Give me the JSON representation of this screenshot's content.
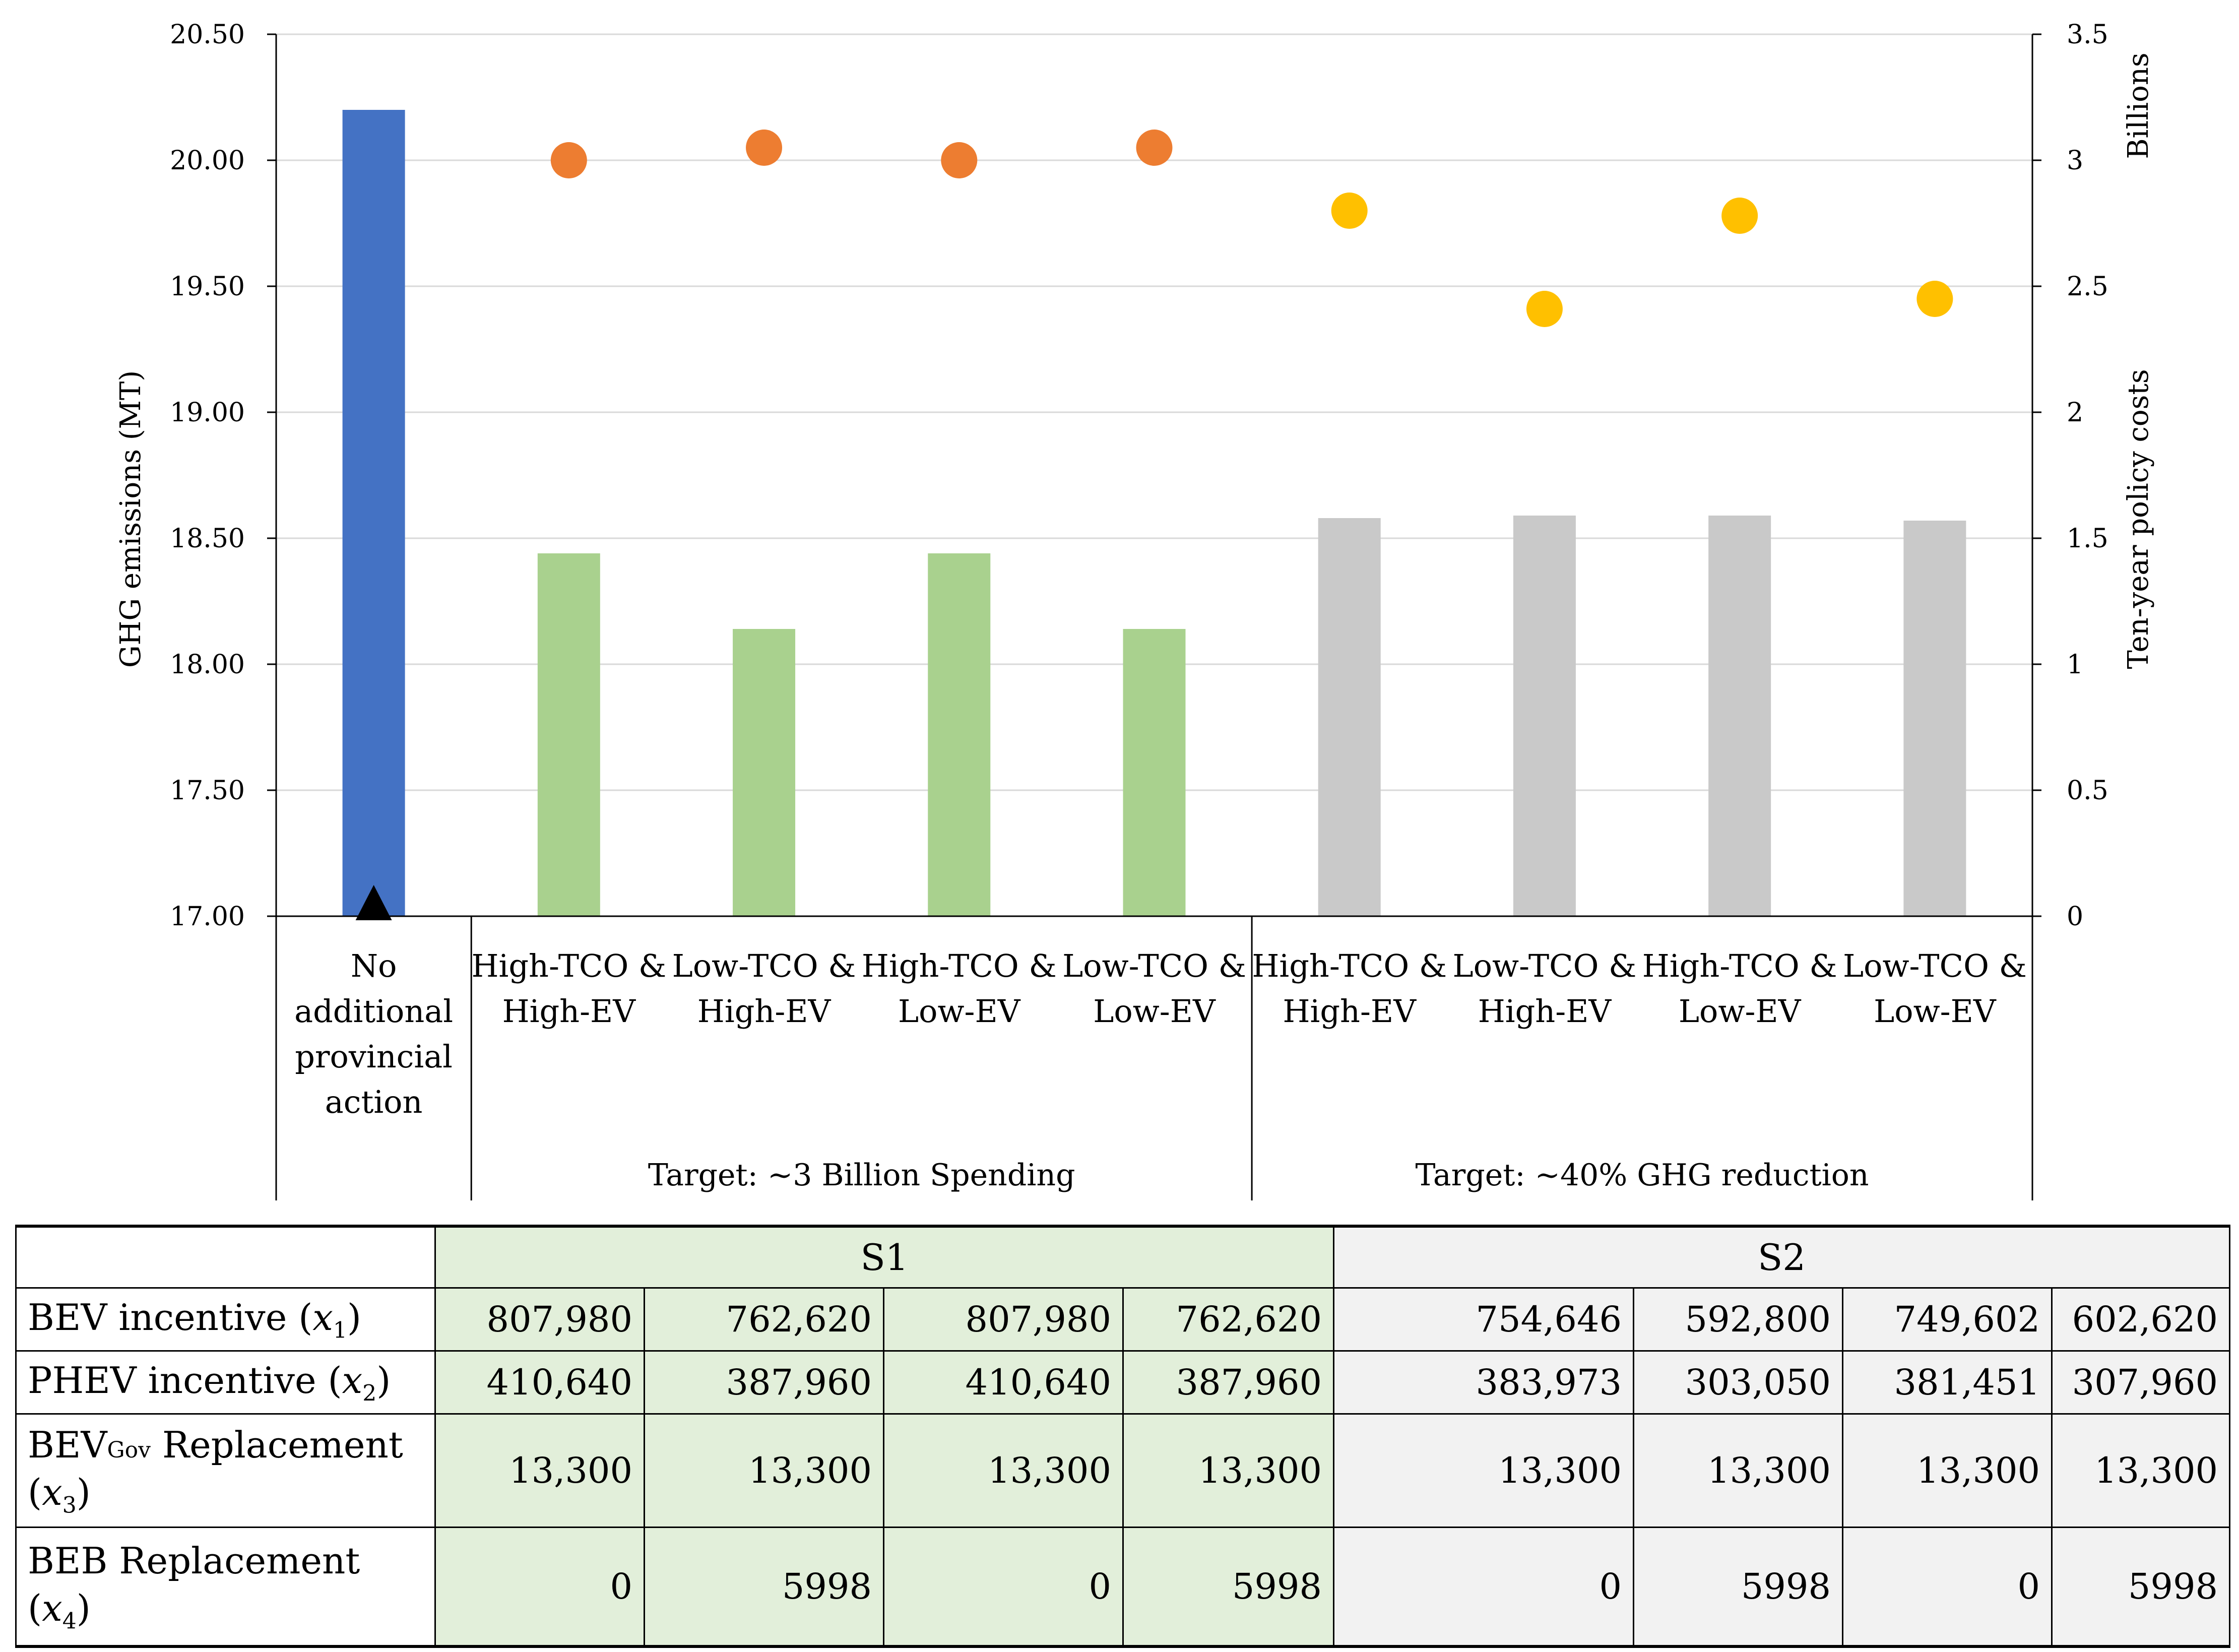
{
  "chart_data": {
    "type": "bar+scatter",
    "categories": [
      "No additional provincial action",
      "High-TCO & High-EV",
      "Low-TCO & High-EV",
      "High-TCO & Low-EV",
      "Low-TCO & Low-EV",
      "High-TCO & High-EV",
      "Low-TCO & High-EV",
      "High-TCO & Low-EV",
      "Low-TCO & Low-EV"
    ],
    "category_lines": [
      [
        "No",
        "additional",
        "provincial",
        "action"
      ],
      [
        "High-TCO &",
        "High-EV"
      ],
      [
        "Low-TCO &",
        "High-EV"
      ],
      [
        "High-TCO &",
        "Low-EV"
      ],
      [
        "Low-TCO &",
        "Low-EV"
      ],
      [
        "High-TCO &",
        "High-EV"
      ],
      [
        "Low-TCO &",
        "High-EV"
      ],
      [
        "High-TCO &",
        "Low-EV"
      ],
      [
        "Low-TCO &",
        "Low-EV"
      ]
    ],
    "groups": [
      {
        "label": "Target: ~3 Billion Spending",
        "from": 1,
        "to": 4
      },
      {
        "label": "Target: ~40% GHG reduction",
        "from": 5,
        "to": 8
      }
    ],
    "series": [
      {
        "name": "GHG emissions (MT)",
        "kind": "bar",
        "axis": "left",
        "values": [
          20.2,
          18.44,
          18.14,
          18.44,
          18.14,
          18.58,
          18.59,
          18.59,
          18.57
        ],
        "colors": [
          "#4472c4",
          "#a9d18e",
          "#a9d18e",
          "#a9d18e",
          "#a9d18e",
          "#c9c9c9",
          "#c9c9c9",
          "#c9c9c9",
          "#c9c9c9"
        ]
      },
      {
        "name": "Ten-year policy costs (Billions)",
        "kind": "scatter",
        "axis": "right",
        "values": [
          0,
          3.0,
          3.05,
          3.0,
          3.05,
          2.8,
          2.41,
          2.78,
          2.45
        ],
        "colors": [
          "#000000",
          "#ed7d31",
          "#ed7d31",
          "#ed7d31",
          "#ed7d31",
          "#ffc000",
          "#ffc000",
          "#ffc000",
          "#ffc000"
        ],
        "markers": [
          "triangle",
          "circle",
          "circle",
          "circle",
          "circle",
          "circle",
          "circle",
          "circle",
          "circle"
        ]
      }
    ],
    "y_left": {
      "label": "GHG emissions (MT)",
      "ylim": [
        17.0,
        20.5
      ],
      "ticks": [
        "17.00",
        "17.50",
        "18.00",
        "18.50",
        "19.00",
        "19.50",
        "20.00",
        "20.50"
      ]
    },
    "y_right": {
      "label": "Ten-year policy costs",
      "unit_label": "Billions",
      "ylim": [
        0,
        3.5
      ],
      "ticks": [
        "0",
        "0.5",
        "1",
        "1.5",
        "2",
        "2.5",
        "3",
        "3.5"
      ]
    },
    "grid": true
  },
  "table": {
    "group_headers": [
      "S1",
      "S2"
    ],
    "rows": [
      {
        "label": "BEV incentive (",
        "var": "x",
        "var_sub": "1",
        "label_end": ")",
        "values": [
          "807,980",
          "762,620",
          "807,980",
          "762,620",
          "754,646",
          "592,800",
          "749,602",
          "602,620"
        ]
      },
      {
        "label": "PHEV incentive (",
        "var": "x",
        "var_sub": "2",
        "label_end": ")",
        "values": [
          "410,640",
          "387,960",
          "410,640",
          "387,960",
          "383,973",
          "303,050",
          "381,451",
          "307,960"
        ]
      },
      {
        "label_pre": "BEV",
        "label_sub": "Gov",
        "label": " Replacement",
        "var": "x",
        "var_sub": "3",
        "values": [
          "13,300",
          "13,300",
          "13,300",
          "13,300",
          "13,300",
          "13,300",
          "13,300",
          "13,300"
        ]
      },
      {
        "label": "BEB Replacement",
        "var": "x",
        "var_sub": "4",
        "values": [
          "0",
          "5998",
          "0",
          "5998",
          "0",
          "5998",
          "0",
          "5998"
        ]
      }
    ]
  }
}
